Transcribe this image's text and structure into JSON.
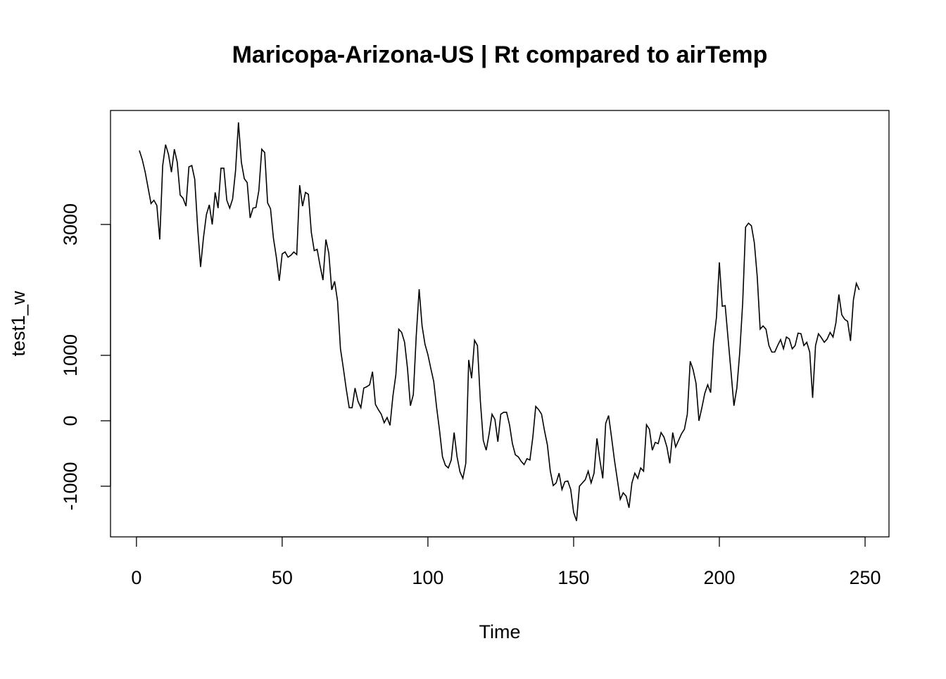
{
  "chart_data": {
    "type": "line",
    "title": "Maricopa-Arizona-US | Rt compared to airTemp",
    "x_label": "Time",
    "y_label": "test1_w",
    "xlim": [
      -8.9,
      258.2
    ],
    "xticks": [
      0,
      50,
      100,
      150,
      200,
      250
    ],
    "ylim": [
      -1774,
      4742
    ],
    "yticks": [
      -1000,
      0,
      1000,
      3000
    ],
    "series": [
      {
        "color": "#000000",
        "x": [
          1,
          2,
          3,
          4,
          5,
          6,
          7,
          8,
          9,
          10,
          11,
          12,
          13,
          14,
          15,
          16,
          17,
          18,
          19,
          20,
          21,
          22,
          23,
          24,
          25,
          26,
          27,
          28,
          29,
          30,
          31,
          32,
          33,
          34,
          35,
          36,
          37,
          38,
          39,
          40,
          41,
          42,
          43,
          44,
          45,
          46,
          47,
          48,
          49,
          50,
          51,
          52,
          53,
          54,
          55,
          56,
          57,
          58,
          59,
          60,
          61,
          62,
          63,
          64,
          65,
          66,
          67,
          68,
          69,
          70,
          71,
          72,
          73,
          74,
          75,
          76,
          77,
          78,
          79,
          80,
          81,
          82,
          83,
          84,
          85,
          86,
          87,
          88,
          89,
          90,
          91,
          92,
          93,
          94,
          95,
          96,
          97,
          98,
          99,
          100,
          101,
          102,
          103,
          104,
          105,
          106,
          107,
          108,
          109,
          110,
          111,
          112,
          113,
          114,
          115,
          116,
          117,
          118,
          119,
          120,
          121,
          122,
          123,
          124,
          125,
          126,
          127,
          128,
          129,
          130,
          131,
          132,
          133,
          134,
          135,
          136,
          137,
          138,
          139,
          140,
          141,
          142,
          143,
          144,
          145,
          146,
          147,
          148,
          149,
          150,
          151,
          152,
          153,
          154,
          155,
          156,
          157,
          158,
          159,
          160,
          161,
          162,
          163,
          164,
          165,
          166,
          167,
          168,
          169,
          170,
          171,
          172,
          173,
          174,
          175,
          176,
          177,
          178,
          179,
          180,
          181,
          182,
          183,
          184,
          185,
          186,
          187,
          188,
          189,
          190,
          191,
          192,
          193,
          194,
          195,
          196,
          197,
          198,
          199,
          200,
          201,
          202,
          203,
          204,
          205,
          206,
          207,
          208,
          209,
          210,
          211,
          212,
          213,
          214,
          215,
          216,
          217,
          218,
          219,
          220,
          221,
          222,
          223,
          224,
          225,
          226,
          227,
          228,
          229,
          230,
          231,
          232,
          233,
          234,
          235,
          236,
          237,
          238,
          239,
          240,
          241,
          242,
          243,
          244,
          245,
          246,
          247,
          248
        ],
        "values": [
          4130,
          3990,
          3800,
          3560,
          3320,
          3370,
          3290,
          2770,
          3900,
          4220,
          4070,
          3800,
          4150,
          3950,
          3450,
          3400,
          3280,
          3880,
          3900,
          3690,
          2950,
          2350,
          2800,
          3150,
          3300,
          3000,
          3490,
          3250,
          3860,
          3860,
          3370,
          3250,
          3390,
          3820,
          4560,
          3950,
          3700,
          3640,
          3100,
          3250,
          3260,
          3520,
          4150,
          4100,
          3330,
          3240,
          2790,
          2500,
          2140,
          2550,
          2580,
          2500,
          2530,
          2580,
          2540,
          3600,
          3280,
          3490,
          3460,
          2880,
          2600,
          2620,
          2370,
          2150,
          2770,
          2560,
          2000,
          2130,
          1830,
          1100,
          800,
          480,
          200,
          200,
          500,
          300,
          200,
          500,
          520,
          550,
          750,
          250,
          170,
          100,
          -30,
          50,
          -70,
          380,
          700,
          1400,
          1350,
          1200,
          800,
          230,
          400,
          1300,
          2010,
          1450,
          1170,
          1010,
          800,
          600,
          200,
          -150,
          -550,
          -680,
          -720,
          -600,
          -180,
          -550,
          -780,
          -880,
          -650,
          930,
          650,
          1230,
          1150,
          300,
          -300,
          -450,
          -200,
          100,
          20,
          -320,
          100,
          130,
          130,
          -60,
          -350,
          -520,
          -550,
          -620,
          -670,
          -580,
          -600,
          -250,
          220,
          170,
          100,
          -150,
          -370,
          -770,
          -990,
          -950,
          -800,
          -1050,
          -930,
          -920,
          -1050,
          -1400,
          -1530,
          -1000,
          -950,
          -900,
          -770,
          -950,
          -800,
          -270,
          -600,
          -880,
          -40,
          80,
          -250,
          -600,
          -900,
          -1200,
          -1100,
          -1150,
          -1330,
          -950,
          -800,
          -880,
          -720,
          -770,
          -60,
          -130,
          -450,
          -330,
          -350,
          -180,
          -250,
          -400,
          -650,
          -180,
          -400,
          -300,
          -200,
          -130,
          100,
          910,
          780,
          570,
          0,
          200,
          420,
          550,
          430,
          1190,
          1580,
          2420,
          1750,
          1760,
          1250,
          750,
          230,
          500,
          1050,
          1800,
          2960,
          3020,
          2980,
          2720,
          2200,
          1400,
          1450,
          1400,
          1150,
          1050,
          1050,
          1150,
          1240,
          1100,
          1280,
          1250,
          1100,
          1150,
          1340,
          1330,
          1150,
          1200,
          1050,
          350,
          1150,
          1330,
          1270,
          1200,
          1250,
          1350,
          1280,
          1500,
          1930,
          1620,
          1550,
          1520,
          1220,
          1850,
          2100,
          2000
        ]
      }
    ]
  }
}
